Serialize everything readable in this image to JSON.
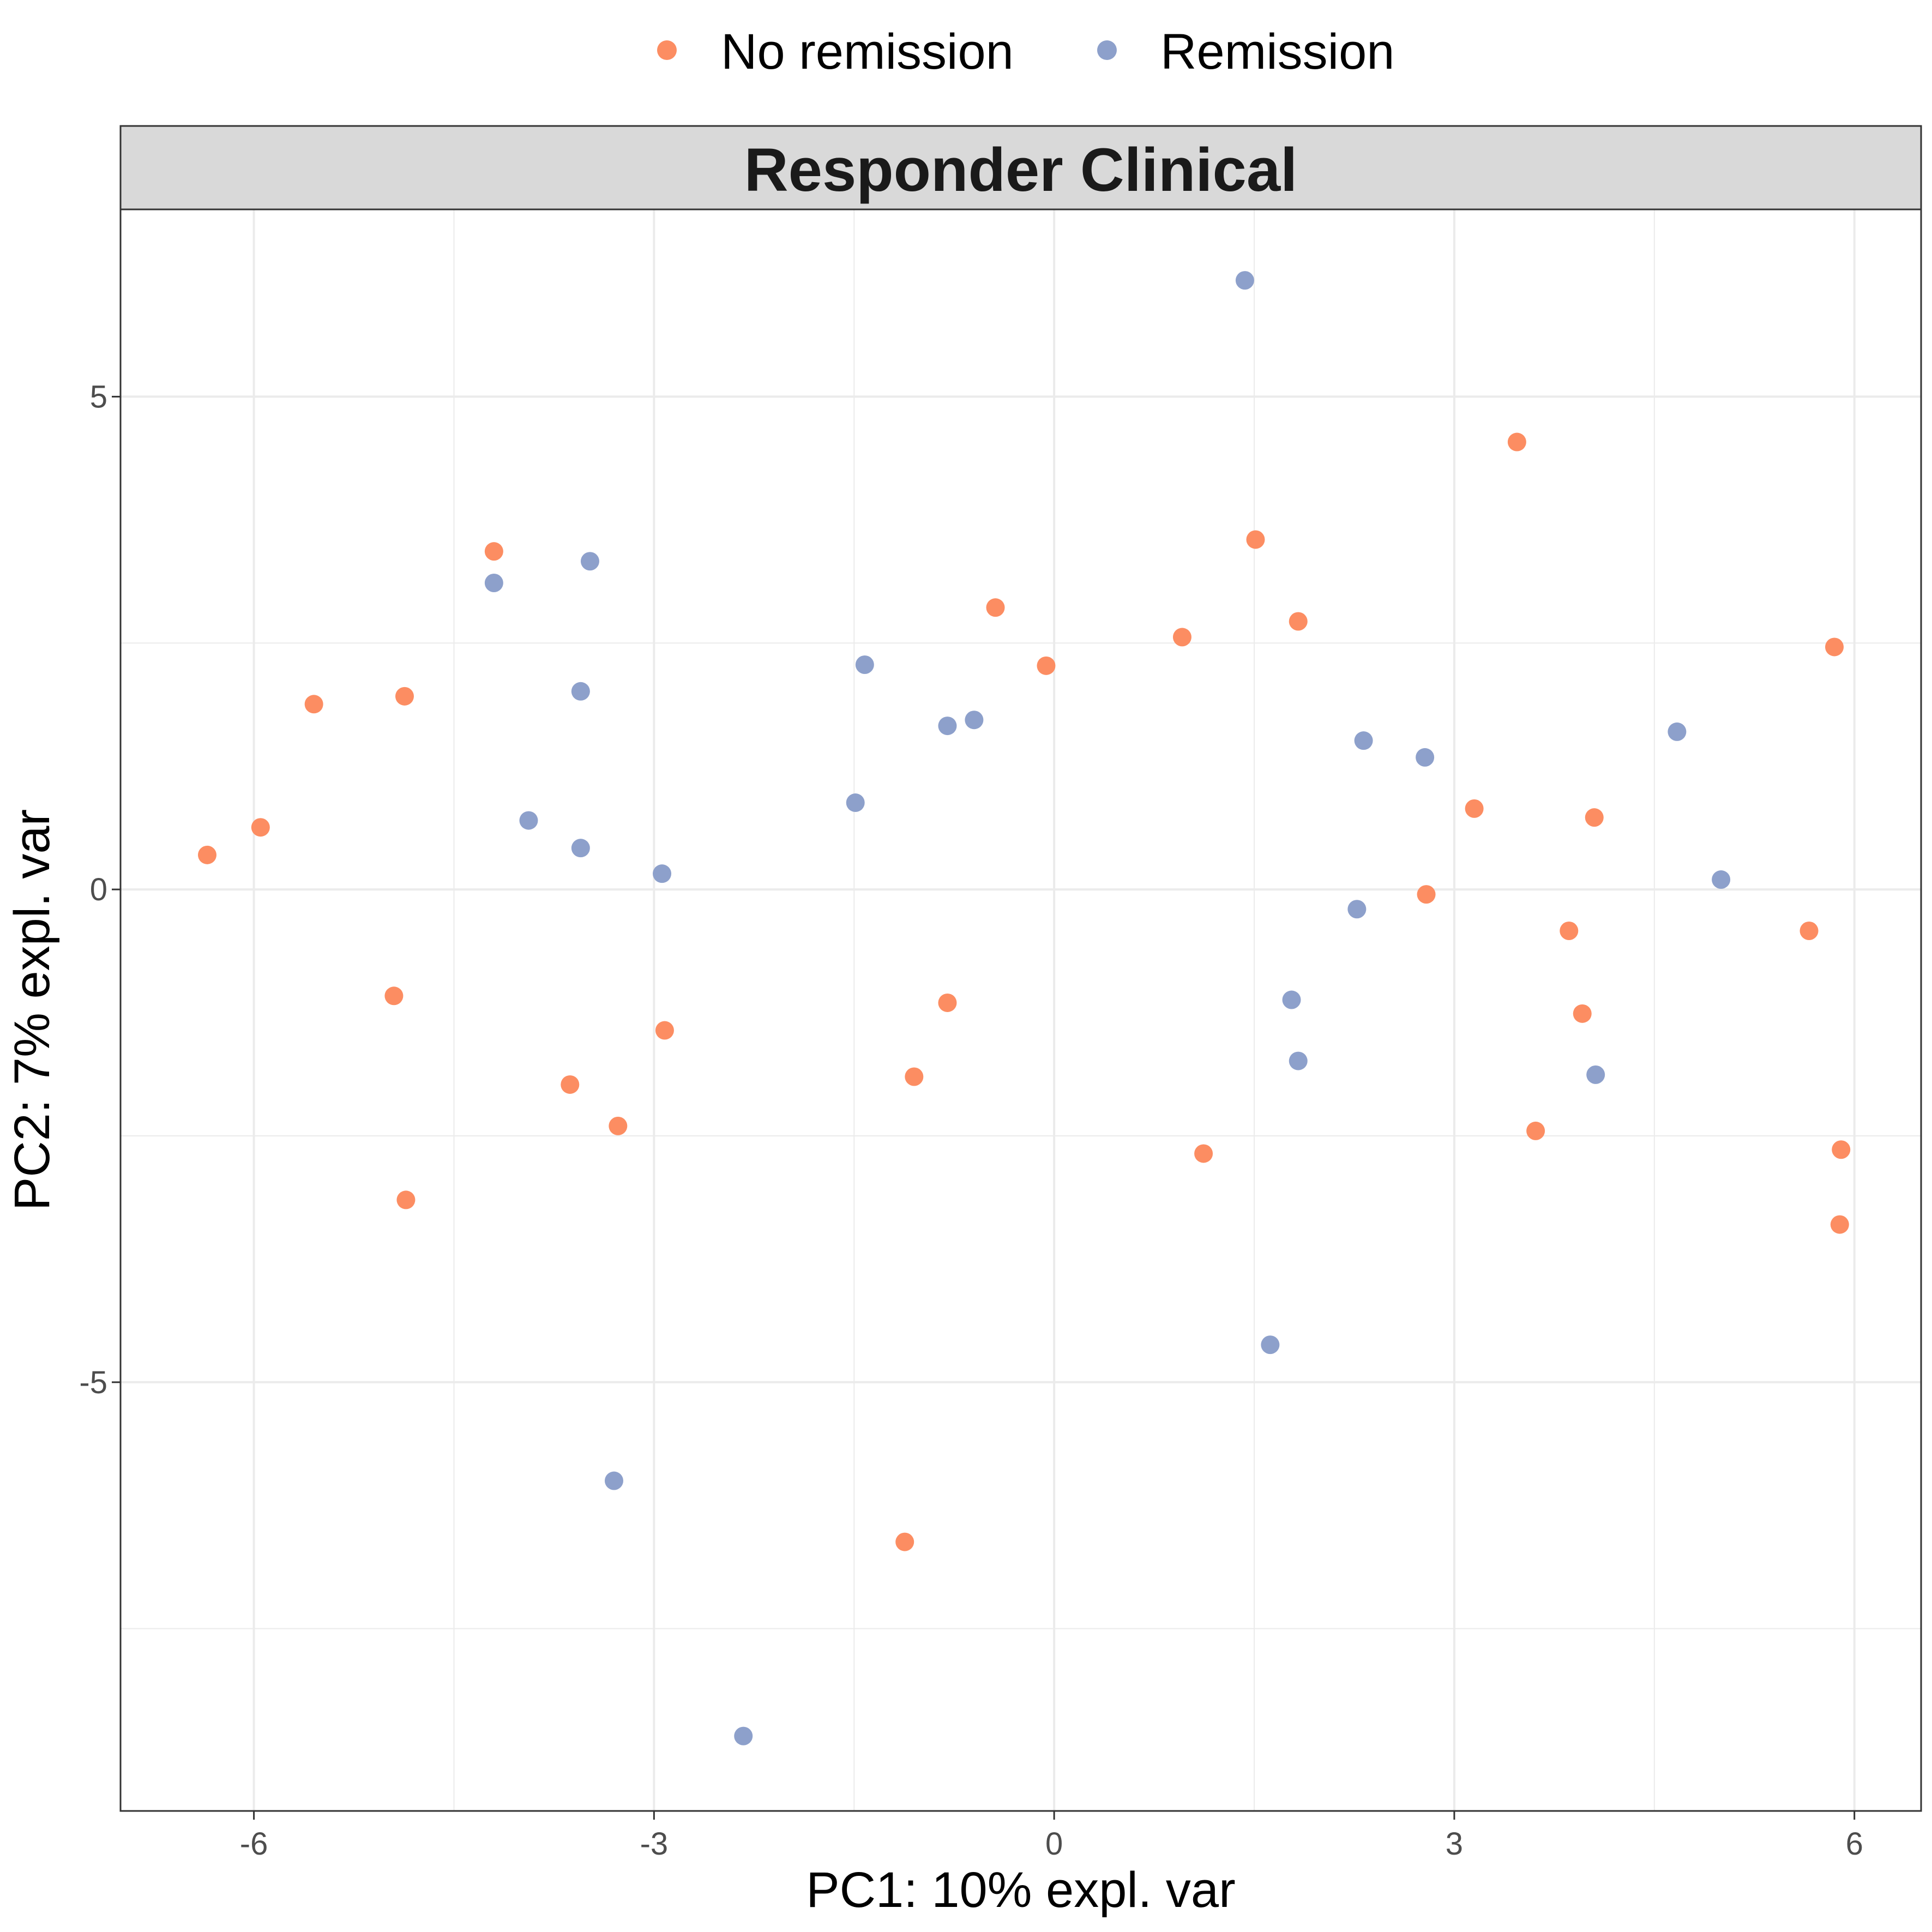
{
  "chart_data": {
    "type": "scatter",
    "title": "",
    "facet_label": "Responder Clinical",
    "xlabel": "PC1: 10% expl. var",
    "ylabel": "PC2: 7% expl. var",
    "xlim": [
      -7.0,
      6.5
    ],
    "ylim": [
      -9.35,
      6.9
    ],
    "x_ticks": [
      -6,
      -3,
      0,
      3,
      6
    ],
    "x_tick_labels": [
      "-6",
      "-3",
      "0",
      "3",
      "6"
    ],
    "y_ticks": [
      -5,
      0,
      5
    ],
    "y_tick_labels": [
      "-5",
      "0",
      "5"
    ],
    "grid": true,
    "legend_position": "top",
    "series": [
      {
        "name": "No remission",
        "color": "#FC8D62",
        "points": [
          [
            -6.35,
            0.35
          ],
          [
            -5.95,
            0.63
          ],
          [
            -5.55,
            1.88
          ],
          [
            -4.87,
            1.96
          ],
          [
            -4.2,
            3.43
          ],
          [
            -4.95,
            -1.08
          ],
          [
            -4.86,
            -3.15
          ],
          [
            -3.63,
            -1.98
          ],
          [
            -3.27,
            -2.4
          ],
          [
            -2.92,
            -1.43
          ],
          [
            -0.44,
            2.86
          ],
          [
            -0.06,
            2.27
          ],
          [
            0.96,
            2.56
          ],
          [
            1.51,
            3.55
          ],
          [
            1.83,
            2.72
          ],
          [
            -0.8,
            -1.15
          ],
          [
            -1.05,
            -1.9
          ],
          [
            -1.12,
            -6.62
          ],
          [
            1.12,
            -2.68
          ],
          [
            2.79,
            -0.05
          ],
          [
            3.15,
            0.82
          ],
          [
            3.47,
            4.54
          ],
          [
            4.05,
            0.73
          ],
          [
            3.86,
            -0.42
          ],
          [
            3.96,
            -1.26
          ],
          [
            3.61,
            -2.45
          ],
          [
            5.66,
            -0.42
          ],
          [
            5.85,
            2.46
          ],
          [
            5.9,
            -2.64
          ],
          [
            5.89,
            -3.4
          ]
        ]
      },
      {
        "name": "Remission",
        "color": "#8DA0CB",
        "points": [
          [
            -4.2,
            3.11
          ],
          [
            -3.48,
            3.33
          ],
          [
            -3.55,
            2.01
          ],
          [
            -3.94,
            0.7
          ],
          [
            -3.55,
            0.42
          ],
          [
            -2.94,
            0.16
          ],
          [
            -1.42,
            2.28
          ],
          [
            -1.49,
            0.88
          ],
          [
            -0.8,
            1.66
          ],
          [
            -0.6,
            1.72
          ],
          [
            1.43,
            6.18
          ],
          [
            2.32,
            1.51
          ],
          [
            2.78,
            1.34
          ],
          [
            2.27,
            -0.2
          ],
          [
            1.78,
            -1.12
          ],
          [
            1.83,
            -1.74
          ],
          [
            1.62,
            -4.62
          ],
          [
            4.06,
            -1.88
          ],
          [
            4.67,
            1.6
          ],
          [
            5.0,
            0.1
          ],
          [
            -3.3,
            -6.0
          ],
          [
            -2.33,
            -8.59
          ]
        ]
      }
    ]
  }
}
